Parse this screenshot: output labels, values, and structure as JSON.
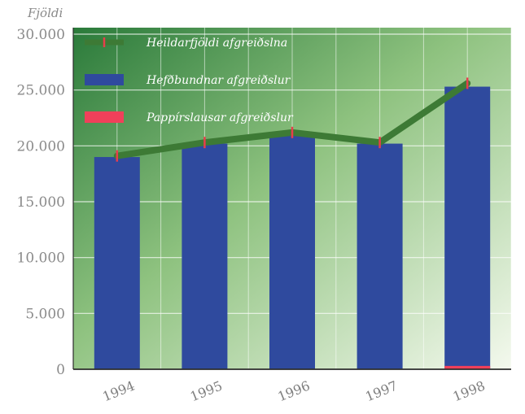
{
  "chart_data": {
    "type": "bar",
    "ylabel": "Fjöldi",
    "categories": [
      "1994",
      "1995",
      "1996",
      "1997",
      "1998"
    ],
    "yticks": [
      "0",
      "5.000",
      "10.000",
      "15.000",
      "20.000",
      "25.000",
      "30.000"
    ],
    "ylim": [
      0,
      30000
    ],
    "grid": true,
    "legend_position": "top-left",
    "series": [
      {
        "name": "Heildarfjöldi afgreiðslna",
        "type": "line",
        "color": "#3d7a35",
        "values": [
          19100,
          20300,
          21200,
          20300,
          25600
        ]
      },
      {
        "name": "Hefðbundnar afgreiðslur",
        "type": "bar",
        "color": "#2f4a9e",
        "values": [
          19000,
          20200,
          21100,
          20200,
          25300
        ]
      },
      {
        "name": "Pappírslausar afgreiðslur",
        "type": "bar",
        "color": "#f0405a",
        "values": [
          0,
          0,
          0,
          0,
          300
        ]
      }
    ]
  }
}
